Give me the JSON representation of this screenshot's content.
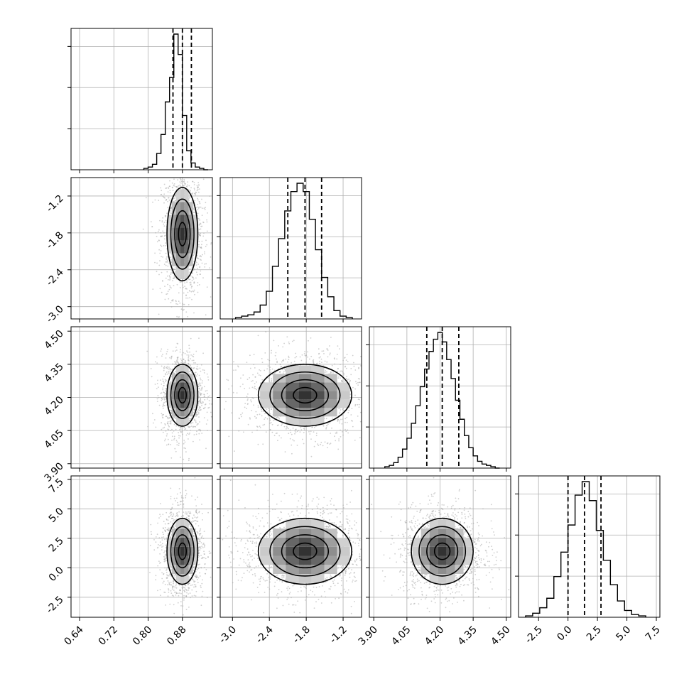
{
  "chart_data": {
    "type": "corner",
    "grid": true,
    "parameters": [
      {
        "range": [
          0.62,
          0.95
        ],
        "ticks": [
          "0.64",
          "0.72",
          "0.80",
          "0.88"
        ],
        "tick_values": [
          0.64,
          0.72,
          0.8,
          0.88
        ],
        "quantiles": [
          0.858,
          0.88,
          0.901
        ],
        "histogram": {
          "edges": [
            0.79,
            0.8,
            0.81,
            0.82,
            0.83,
            0.84,
            0.85,
            0.86,
            0.87,
            0.88,
            0.89,
            0.9,
            0.91,
            0.92,
            0.93,
            0.94
          ],
          "counts": [
            0.01,
            0.02,
            0.04,
            0.12,
            0.26,
            0.5,
            0.68,
            1.0,
            0.85,
            0.4,
            0.14,
            0.05,
            0.02,
            0.01,
            0.0
          ]
        }
      },
      {
        "range": [
          -3.2,
          -0.9
        ],
        "ticks": [
          "-3.0",
          "-2.4",
          "-1.8",
          "-1.2"
        ],
        "tick_values": [
          -3.0,
          -2.4,
          -1.8,
          -1.2
        ],
        "quantiles": [
          -2.1,
          -1.82,
          -1.55
        ],
        "histogram": {
          "edges": [
            -2.95,
            -2.85,
            -2.75,
            -2.65,
            -2.55,
            -2.45,
            -2.35,
            -2.25,
            -2.15,
            -2.05,
            -1.95,
            -1.85,
            -1.75,
            -1.65,
            -1.55,
            -1.45,
            -1.35,
            -1.25,
            -1.15,
            -1.05
          ],
          "counts": [
            0.01,
            0.02,
            0.03,
            0.05,
            0.1,
            0.2,
            0.38,
            0.58,
            0.78,
            0.92,
            0.98,
            0.92,
            0.72,
            0.5,
            0.3,
            0.16,
            0.06,
            0.02,
            0.01
          ]
        }
      },
      {
        "range": [
          3.88,
          4.52
        ],
        "ticks": [
          "3.90",
          "4.05",
          "4.20",
          "4.35",
          "4.50"
        ],
        "tick_values": [
          3.9,
          4.05,
          4.2,
          4.35,
          4.5
        ],
        "quantiles": [
          4.14,
          4.21,
          4.285
        ],
        "histogram": {
          "edges": [
            3.95,
            3.97,
            3.99,
            4.01,
            4.03,
            4.05,
            4.07,
            4.09,
            4.11,
            4.13,
            4.15,
            4.17,
            4.19,
            4.21,
            4.23,
            4.25,
            4.27,
            4.29,
            4.31,
            4.33,
            4.35,
            4.37,
            4.39,
            4.41,
            4.43,
            4.45,
            4.47
          ],
          "counts": [
            0.01,
            0.02,
            0.04,
            0.08,
            0.14,
            0.22,
            0.33,
            0.46,
            0.6,
            0.73,
            0.86,
            0.95,
            1.0,
            0.93,
            0.8,
            0.66,
            0.5,
            0.36,
            0.24,
            0.15,
            0.09,
            0.05,
            0.03,
            0.02,
            0.01,
            0.0
          ]
        }
      },
      {
        "range": [
          -4.2,
          7.8
        ],
        "ticks": [
          "-2.5",
          "0.0",
          "2.5",
          "5.0",
          "7.5"
        ],
        "tick_values": [
          -2.5,
          0.0,
          2.5,
          5.0,
          7.5
        ],
        "quantiles": [
          0.0,
          1.4,
          2.8
        ],
        "histogram": {
          "edges": [
            -3.6,
            -3.0,
            -2.4,
            -1.8,
            -1.2,
            -0.6,
            0.0,
            0.6,
            1.2,
            1.8,
            2.4,
            3.0,
            3.6,
            4.2,
            4.8,
            5.4,
            6.0,
            6.6
          ],
          "counts": [
            0.01,
            0.03,
            0.07,
            0.14,
            0.3,
            0.48,
            0.68,
            0.9,
            1.0,
            0.86,
            0.64,
            0.42,
            0.24,
            0.12,
            0.05,
            0.02,
            0.01
          ]
        }
      }
    ],
    "pairs": [
      {
        "x": 0,
        "y": 1,
        "center": [
          0.88,
          -1.82
        ],
        "sigma": [
          0.018,
          0.38
        ]
      },
      {
        "x": 0,
        "y": 2,
        "center": [
          0.88,
          4.21
        ],
        "sigma": [
          0.018,
          0.07
        ]
      },
      {
        "x": 0,
        "y": 3,
        "center": [
          0.88,
          1.4
        ],
        "sigma": [
          0.018,
          1.4
        ]
      },
      {
        "x": 1,
        "y": 2,
        "center": [
          -1.82,
          4.21
        ],
        "sigma": [
          0.38,
          0.07
        ]
      },
      {
        "x": 1,
        "y": 3,
        "center": [
          -1.82,
          1.4
        ],
        "sigma": [
          0.38,
          1.4
        ]
      },
      {
        "x": 2,
        "y": 3,
        "center": [
          4.21,
          1.4
        ],
        "sigma": [
          0.07,
          1.4
        ]
      }
    ],
    "contour_levels_sigma": [
      0.5,
      1.0,
      1.5,
      2.0
    ],
    "colors": {
      "line": "#000000",
      "grid": "#b0b0b0",
      "points": "#a8a8a8"
    }
  }
}
